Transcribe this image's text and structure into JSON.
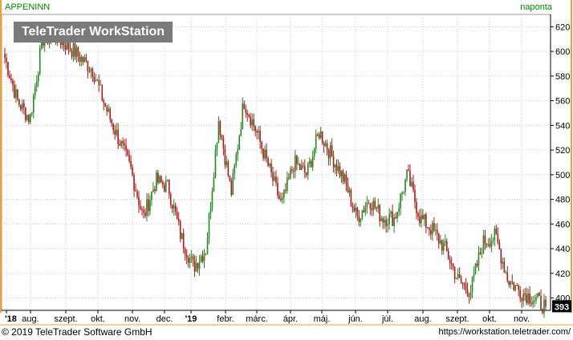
{
  "app": {
    "symbol": "APPENINN",
    "period": "naponta",
    "watermark": "TeleTrader WorkStation",
    "copyright": "© 2019 TeleTrader Software GmbH",
    "url": "https://workstation.teletrader.com/"
  },
  "colors": {
    "up": "#1f8a1f",
    "down": "#b01818",
    "grid": "#cccccc",
    "frame": "#f0a030",
    "label_bg": "#000000"
  },
  "chart_data": {
    "type": "candlestick",
    "ylim": [
      390,
      630
    ],
    "y_ticks": [
      400,
      420,
      440,
      460,
      480,
      500,
      520,
      540,
      560,
      580,
      600,
      620
    ],
    "x_ticks": [
      "'18",
      "aug.",
      "szept.",
      "okt.",
      "nov.",
      "dec.",
      "'19",
      "febr.",
      "márc.",
      "ápr.",
      "máj.",
      "jún.",
      "júl.",
      "aug.",
      "szept.",
      "okt.",
      "nov."
    ],
    "last_value": "393",
    "anchors": [
      {
        "x": "'18",
        "close": 595
      },
      {
        "x": "'18+",
        "close": 560
      },
      {
        "x": "'18++",
        "close": 545
      },
      {
        "x": "aug.",
        "close": 610
      },
      {
        "x": "aug.+",
        "close": 612
      },
      {
        "x": "szept.",
        "close": 605
      },
      {
        "x": "szept.+",
        "close": 595
      },
      {
        "x": "okt.",
        "close": 585
      },
      {
        "x": "okt.+",
        "close": 555
      },
      {
        "x": "okt.++",
        "close": 530
      },
      {
        "x": "nov.",
        "close": 505
      },
      {
        "x": "nov.+",
        "close": 465
      },
      {
        "x": "nov.++",
        "close": 495
      },
      {
        "x": "dec.",
        "close": 490
      },
      {
        "x": "dec.+",
        "close": 450
      },
      {
        "x": "dec.++",
        "close": 425
      },
      {
        "x": "'19",
        "close": 440
      },
      {
        "x": "'19+",
        "close": 545
      },
      {
        "x": "'19++",
        "close": 485
      },
      {
        "x": "febr.",
        "close": 560
      },
      {
        "x": "febr.+",
        "close": 535
      },
      {
        "x": "márc.",
        "close": 505
      },
      {
        "x": "márc.+",
        "close": 475
      },
      {
        "x": "márc.++",
        "close": 510
      },
      {
        "x": "ápr.",
        "close": 500
      },
      {
        "x": "ápr.+",
        "close": 535
      },
      {
        "x": "ápr.++",
        "close": 515
      },
      {
        "x": "máj.",
        "close": 495
      },
      {
        "x": "máj.+",
        "close": 465
      },
      {
        "x": "jún.",
        "close": 480
      },
      {
        "x": "jún.+",
        "close": 465
      },
      {
        "x": "júl.",
        "close": 465
      },
      {
        "x": "júl.+",
        "close": 500
      },
      {
        "x": "júl.++",
        "close": 465
      },
      {
        "x": "aug.",
        "close": 455
      },
      {
        "x": "aug.+",
        "close": 440
      },
      {
        "x": "szept.",
        "close": 415
      },
      {
        "x": "szept.+",
        "close": 405
      },
      {
        "x": "szept.++",
        "close": 445
      },
      {
        "x": "okt.",
        "close": 450
      },
      {
        "x": "okt.+",
        "close": 415
      },
      {
        "x": "nov.",
        "close": 405
      },
      {
        "x": "nov.+",
        "close": 400
      },
      {
        "x": "nov.++",
        "close": 393
      }
    ]
  }
}
